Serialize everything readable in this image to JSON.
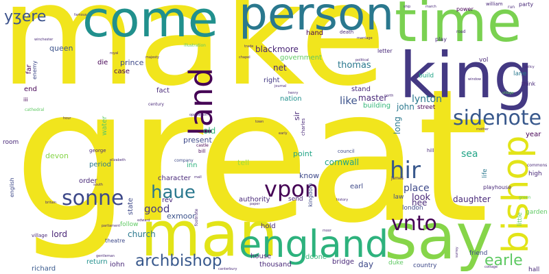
{
  "words": [
    {
      "text": "make",
      "color": "#f1e51d"
    },
    {
      "text": "great",
      "color": "#f1e51d"
    },
    {
      "text": "come",
      "color": "#21908d"
    },
    {
      "text": "time",
      "color": "#7ad151"
    },
    {
      "text": "person",
      "color": "#2a788e"
    },
    {
      "text": "king",
      "color": "#443983"
    },
    {
      "text": "man",
      "color": "#e2e418"
    },
    {
      "text": "say",
      "color": "#86d549"
    },
    {
      "text": "england",
      "color": "#2db27d"
    },
    {
      "text": "land",
      "color": "#440154"
    },
    {
      "text": "bishop",
      "color": "#e2e418"
    },
    {
      "text": "sidenote",
      "color": "#38588c"
    },
    {
      "text": "yʒere",
      "color": "#3b528b"
    },
    {
      "text": "hir",
      "color": "#38588c"
    },
    {
      "text": "vpon",
      "color": "#440154"
    },
    {
      "text": "sonne",
      "color": "#3e4989"
    },
    {
      "text": "haue",
      "color": "#2a788e"
    },
    {
      "text": "vnto",
      "color": "#440154"
    },
    {
      "text": "archbishop",
      "color": "#38588c"
    },
    {
      "text": "earle",
      "color": "#5ec962"
    },
    {
      "text": "blackmore",
      "color": "#482475"
    },
    {
      "text": "queen",
      "color": "#3b528b"
    },
    {
      "text": "government",
      "color": "#5ec962"
    },
    {
      "text": "thomas",
      "color": "#2a788e"
    },
    {
      "text": "lynton",
      "color": "#2a788e"
    },
    {
      "text": "master",
      "color": "#482878"
    },
    {
      "text": "like",
      "color": "#3b528b"
    },
    {
      "text": "john",
      "color": "#2a788e"
    },
    {
      "text": "long",
      "color": "#2a788e"
    },
    {
      "text": "old",
      "color": "#35b779"
    },
    {
      "text": "present",
      "color": "#3e4989"
    },
    {
      "text": "devon",
      "color": "#86d549"
    },
    {
      "text": "period",
      "color": "#2a788e"
    },
    {
      "text": "order",
      "color": "#482878"
    },
    {
      "text": "character",
      "color": "#482878"
    },
    {
      "text": "inn",
      "color": "#2db27d"
    },
    {
      "text": "tell",
      "color": "#a0da39"
    },
    {
      "text": "point",
      "color": "#20a486"
    },
    {
      "text": "cornwall",
      "color": "#20a486"
    },
    {
      "text": "know",
      "color": "#3e4989"
    },
    {
      "text": "sea",
      "color": "#20a486"
    },
    {
      "text": "place",
      "color": "#3e4989"
    },
    {
      "text": "look",
      "color": "#482878"
    },
    {
      "text": "daughter",
      "color": "#482878"
    },
    {
      "text": "good",
      "color": "#443983"
    },
    {
      "text": "exmoor",
      "color": "#3b528b"
    },
    {
      "text": "church",
      "color": "#2a788e"
    },
    {
      "text": "lord",
      "color": "#482475"
    },
    {
      "text": "hold",
      "color": "#482878"
    },
    {
      "text": "house",
      "color": "#482878"
    },
    {
      "text": "thousand",
      "color": "#482878"
    },
    {
      "text": "doone",
      "color": "#35b779"
    },
    {
      "text": "bridge",
      "color": "#482878"
    },
    {
      "text": "day",
      "color": "#3e4989"
    },
    {
      "text": "richard",
      "color": "#38588c"
    },
    {
      "text": "return",
      "color": "#21908d"
    },
    {
      "text": "iohn",
      "color": "#482878"
    },
    {
      "text": "net",
      "color": "#482878"
    },
    {
      "text": "right",
      "color": "#443983"
    },
    {
      "text": "nation",
      "color": "#21908d"
    },
    {
      "text": "fact",
      "color": "#482878"
    },
    {
      "text": "hand",
      "color": "#440154"
    },
    {
      "text": "letter",
      "color": "#482878"
    },
    {
      "text": "power",
      "color": "#440154"
    },
    {
      "text": "party",
      "color": "#482878"
    },
    {
      "text": "think",
      "color": "#482878"
    },
    {
      "text": "build",
      "color": "#20a486"
    },
    {
      "text": "vol",
      "color": "#482878"
    },
    {
      "text": "lane",
      "color": "#2a788e"
    },
    {
      "text": "year",
      "color": "#440154"
    },
    {
      "text": "stand",
      "color": "#482878"
    },
    {
      "text": "building",
      "color": "#35b779"
    },
    {
      "text": "street",
      "color": "#440154"
    },
    {
      "text": "prince",
      "color": "#3e4989"
    },
    {
      "text": "die",
      "color": "#440154"
    },
    {
      "text": "case",
      "color": "#440154"
    },
    {
      "text": "end",
      "color": "#440154"
    },
    {
      "text": "far",
      "color": "#440154"
    },
    {
      "text": "room",
      "color": "#482878"
    },
    {
      "text": "water",
      "color": "#5ec962"
    },
    {
      "text": "state",
      "color": "#3e4989"
    },
    {
      "text": "authority",
      "color": "#482878"
    },
    {
      "text": "rev",
      "color": "#482878"
    },
    {
      "text": "send",
      "color": "#482878"
    },
    {
      "text": "hee",
      "color": "#482878"
    },
    {
      "text": "earl",
      "color": "#3e4989"
    },
    {
      "text": "law",
      "color": "#3e4989"
    },
    {
      "text": "london",
      "color": "#3e4989"
    },
    {
      "text": "duke",
      "color": "#5ec962"
    },
    {
      "text": "country",
      "color": "#3e4989"
    },
    {
      "text": "friend",
      "color": "#3e4989"
    },
    {
      "text": "hall",
      "color": "#482878"
    },
    {
      "text": "high",
      "color": "#482878"
    },
    {
      "text": "life",
      "color": "#2a788e"
    },
    {
      "text": "little",
      "color": "#5ec962"
    },
    {
      "text": "garden",
      "color": "#5ec962"
    },
    {
      "text": "playhouse",
      "color": "#482878"
    },
    {
      "text": "sir",
      "color": "#482878"
    },
    {
      "text": "follow",
      "color": "#5ec962"
    },
    {
      "text": "theatre",
      "color": "#3e4989"
    },
    {
      "text": "village",
      "color": "#482878"
    },
    {
      "text": "english",
      "color": "#3e4989"
    },
    {
      "text": "enemy",
      "color": "#3e4989"
    },
    {
      "text": "iii",
      "color": "#440154"
    },
    {
      "text": "bill",
      "color": "#440154"
    },
    {
      "text": "castle",
      "color": "#440154"
    },
    {
      "text": "company",
      "color": "#3e4989"
    },
    {
      "text": "council",
      "color": "#3e4989"
    },
    {
      "text": "kingdom",
      "color": "#3e4989"
    },
    {
      "text": "charles",
      "color": "#482878"
    },
    {
      "text": "hill",
      "color": "#482878"
    },
    {
      "text": "james",
      "color": "#482878"
    },
    {
      "text": "commons",
      "color": "#482878"
    },
    {
      "text": "william",
      "color": "#482878"
    },
    {
      "text": "road",
      "color": "#482878"
    },
    {
      "text": "play",
      "color": "#482878"
    },
    {
      "text": "death",
      "color": "#482878"
    },
    {
      "text": "run",
      "color": "#482878"
    },
    {
      "text": "illustration",
      "color": "#5ec962"
    },
    {
      "text": "century",
      "color": "#482878"
    },
    {
      "text": "george",
      "color": "#482878"
    },
    {
      "text": "cathedral",
      "color": "#5ec962"
    },
    {
      "text": "winchester",
      "color": "#482878"
    },
    {
      "text": "green",
      "color": "#5ec962"
    },
    {
      "text": "canterbury",
      "color": "#482878"
    },
    {
      "text": "surrey",
      "color": "#482878"
    },
    {
      "text": "cottage",
      "color": "#482878"
    },
    {
      "text": "south",
      "color": "#482878"
    },
    {
      "text": "footnote",
      "color": "#482878"
    },
    {
      "text": "north",
      "color": "#482878"
    },
    {
      "text": "elizabeth",
      "color": "#482878"
    },
    {
      "text": "majesty",
      "color": "#482878"
    },
    {
      "text": "mall",
      "color": "#482878"
    },
    {
      "text": "history",
      "color": "#482878"
    },
    {
      "text": "political",
      "color": "#482878"
    },
    {
      "text": "marriage",
      "color": "#482878"
    },
    {
      "text": "royal",
      "color": "#482878"
    },
    {
      "text": "window",
      "color": "#482878"
    },
    {
      "text": "policy",
      "color": "#482878"
    },
    {
      "text": "chapel",
      "color": "#482878"
    },
    {
      "text": "opposition",
      "color": "#482878"
    },
    {
      "text": "parliament",
      "color": "#482878"
    },
    {
      "text": "edward",
      "color": "#482878"
    },
    {
      "text": "hour",
      "color": "#482878"
    },
    {
      "text": "journal",
      "color": "#482878"
    },
    {
      "text": "trade",
      "color": "#482878"
    },
    {
      "text": "town",
      "color": "#482878"
    },
    {
      "text": "moor",
      "color": "#482878"
    },
    {
      "text": "early",
      "color": "#482878"
    },
    {
      "text": "britain",
      "color": "#482878"
    },
    {
      "text": "henry",
      "color": "#482878"
    },
    {
      "text": "paper",
      "color": "#482878"
    },
    {
      "text": "gentleman",
      "color": "#482878"
    },
    {
      "text": "mother",
      "color": "#482878"
    },
    {
      "text": "ship",
      "color": "#482878"
    },
    {
      "text": "march",
      "color": "#482878"
    },
    {
      "text": "famous",
      "color": "#482878"
    },
    {
      "text": "village",
      "color": "#5ec962"
    }
  ]
}
